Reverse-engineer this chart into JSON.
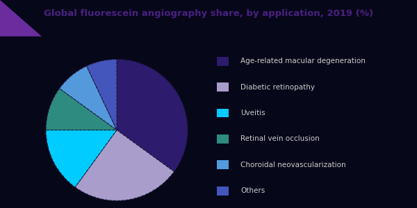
{
  "title": "Global fluorescein angiography share, by application, 2019 (%)",
  "title_color": "#4a2080",
  "title_fontsize": 9.5,
  "background_color": "#07071a",
  "slices": [
    {
      "label": "Age-related macular degeneration",
      "value": 35.0,
      "color": "#2d1b6e"
    },
    {
      "label": "Diabetic retinopathy",
      "value": 25.0,
      "color": "#a99dcc"
    },
    {
      "label": "Uveitis",
      "value": 15.0,
      "color": "#00ccff"
    },
    {
      "label": "Retinal vein occlusion",
      "value": 10.0,
      "color": "#2e8b80"
    },
    {
      "label": "Choroidal neovascularization",
      "value": 8.0,
      "color": "#5599dd"
    },
    {
      "label": "Others",
      "value": 7.0,
      "color": "#4455bb"
    }
  ],
  "edge_color": "#07071a",
  "legend_text_color": "#cccccc",
  "legend_fontsize": 7.5,
  "triangle_color": "#6b2d9e",
  "line_color": "#3344aa",
  "startangle": 90
}
